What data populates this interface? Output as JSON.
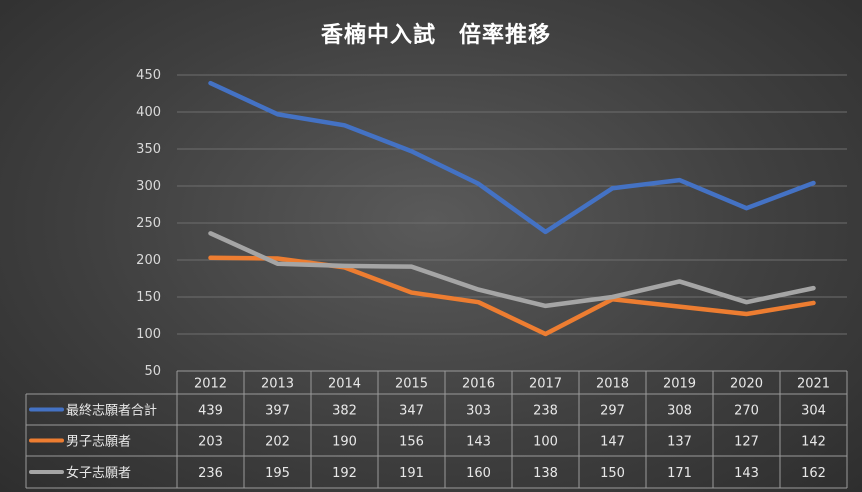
{
  "chart_data": {
    "type": "line",
    "title": "香楠中入試　倍率推移",
    "categories": [
      "2012",
      "2013",
      "2014",
      "2015",
      "2016",
      "2017",
      "2018",
      "2019",
      "2020",
      "2021"
    ],
    "series": [
      {
        "name": "最終志願者合計",
        "color": "#4472C4",
        "values": [
          439,
          397,
          382,
          347,
          303,
          238,
          297,
          308,
          270,
          304
        ]
      },
      {
        "name": "男子志願者",
        "color": "#ED7D31",
        "values": [
          203,
          202,
          190,
          156,
          143,
          100,
          147,
          137,
          127,
          142
        ]
      },
      {
        "name": "女子志願者",
        "color": "#A5A5A5",
        "values": [
          236,
          195,
          192,
          191,
          160,
          138,
          150,
          171,
          143,
          162
        ]
      }
    ],
    "yticks": [
      "50",
      "100",
      "150",
      "200",
      "250",
      "300",
      "350",
      "400",
      "450"
    ],
    "ylim": [
      50,
      450
    ],
    "grid": true,
    "legend": "data-table"
  }
}
